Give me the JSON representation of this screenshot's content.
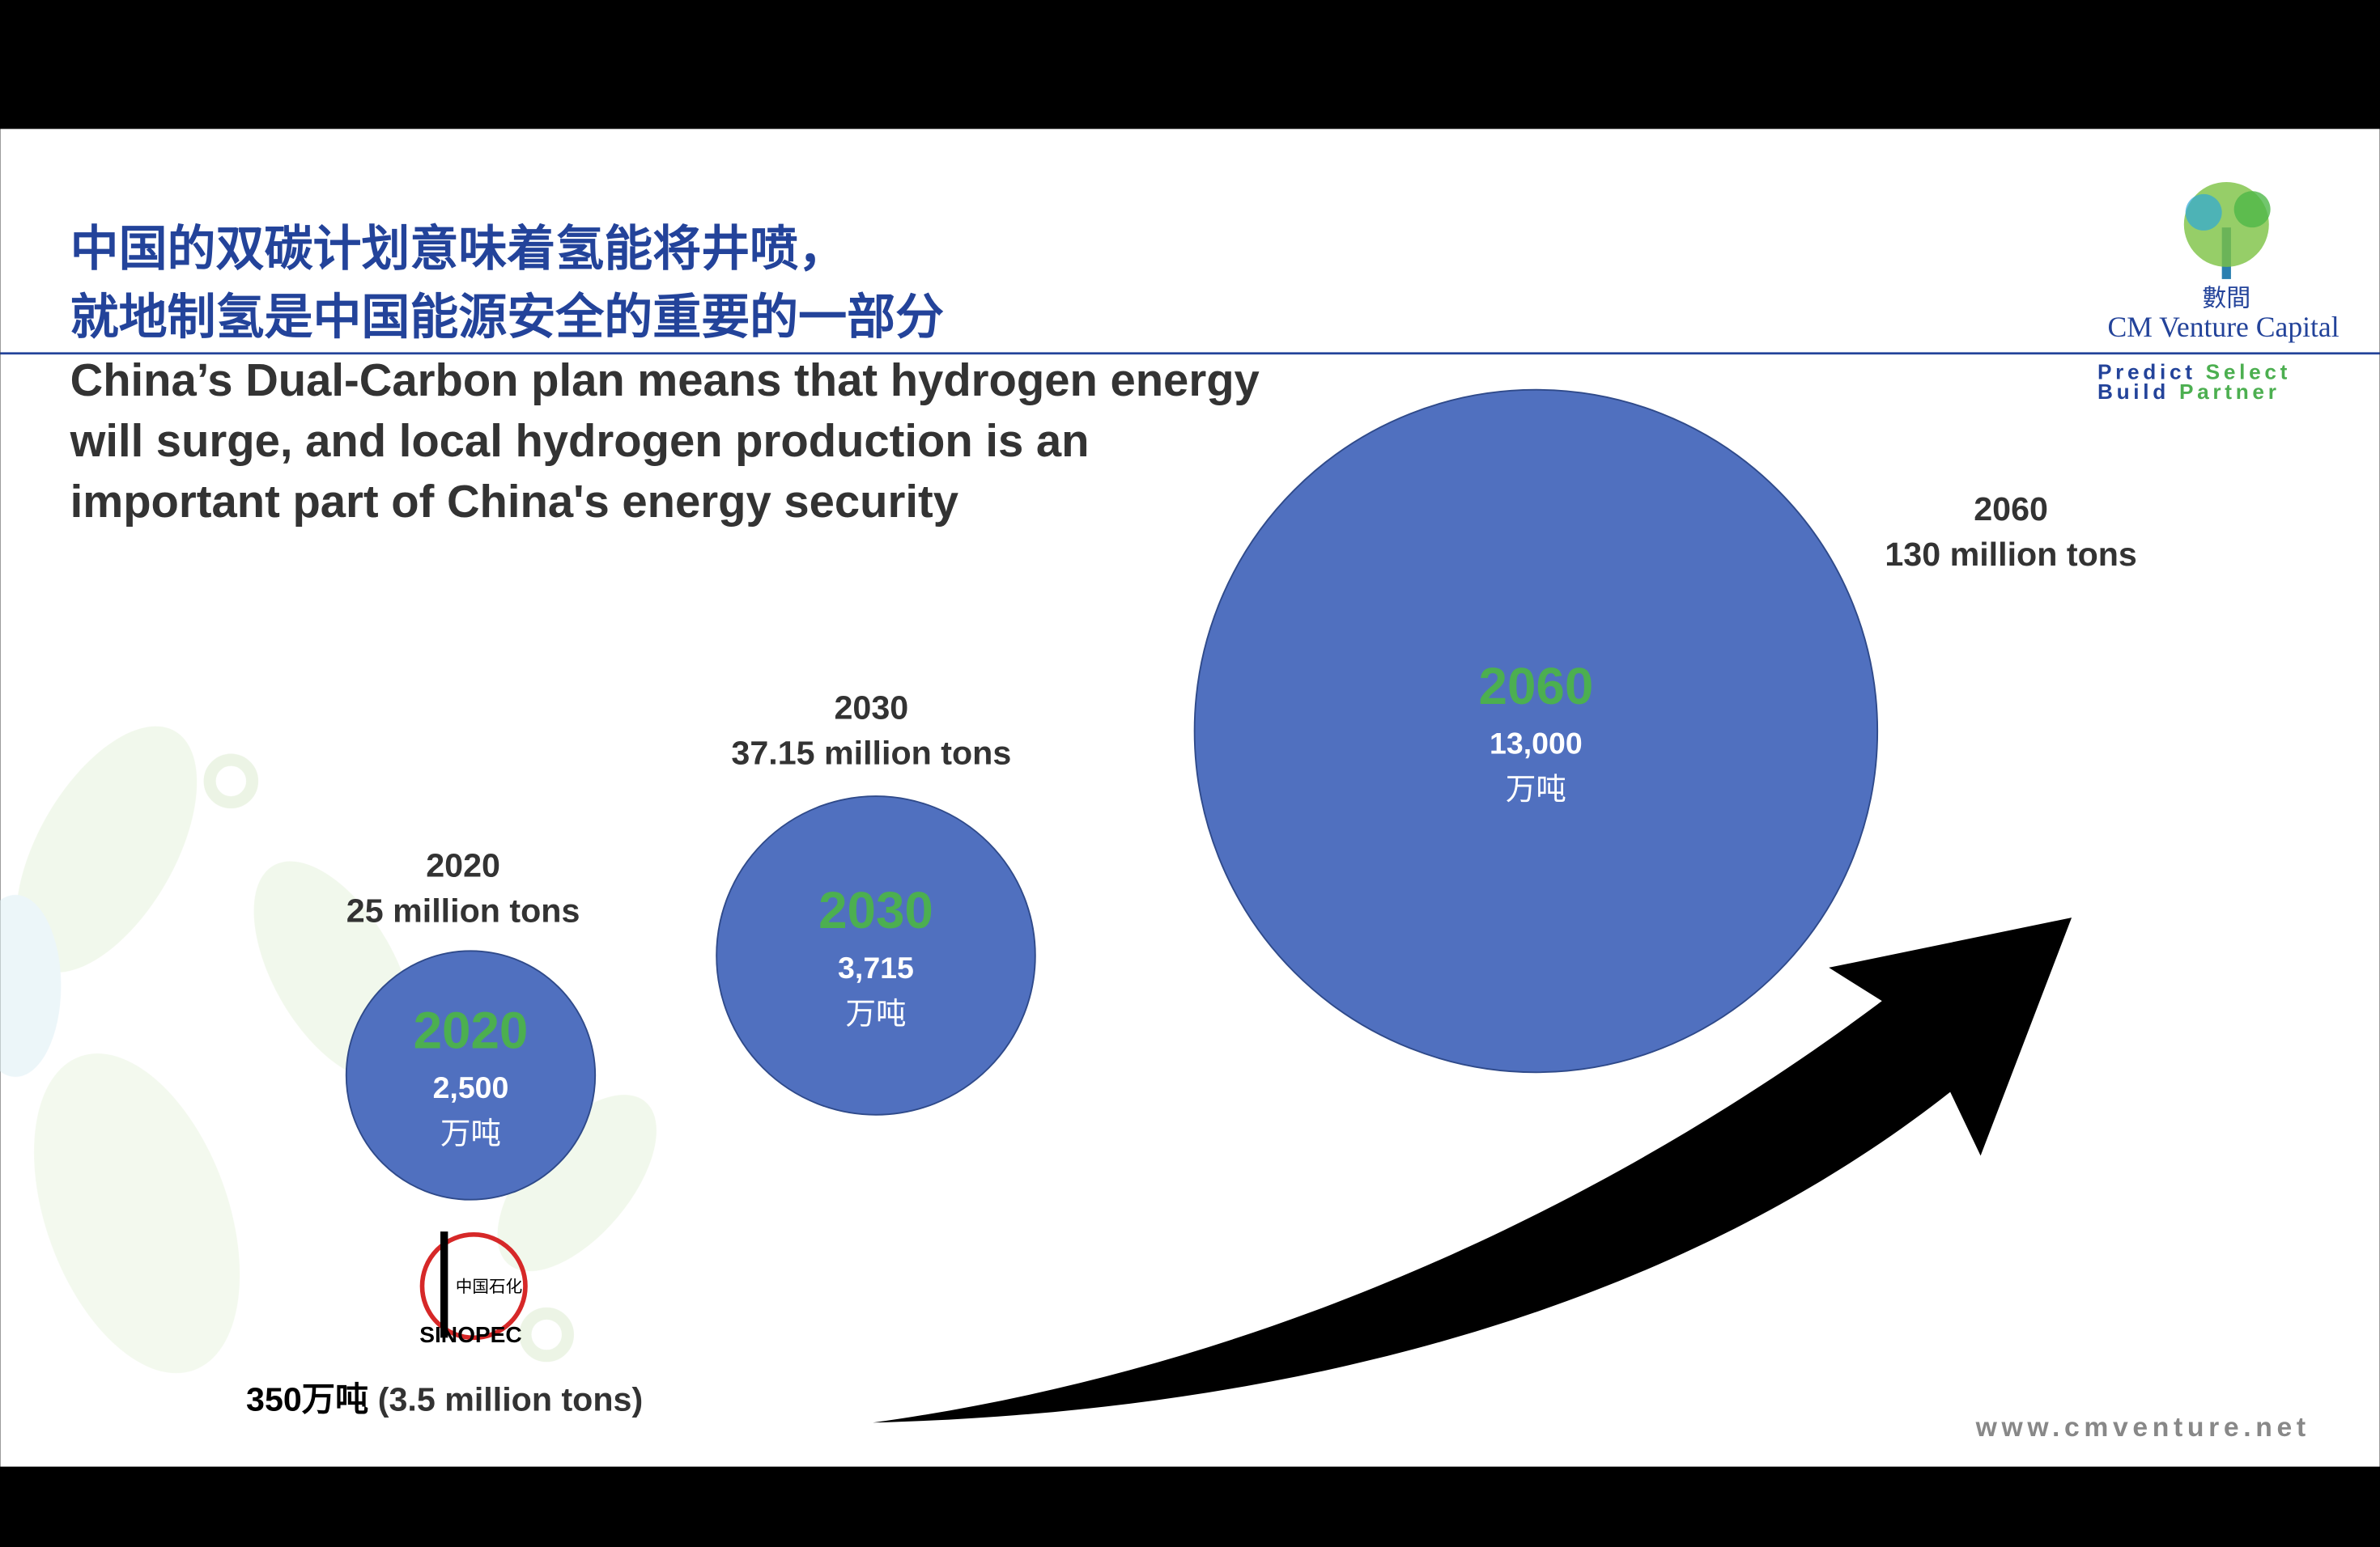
{
  "title_zh": [
    "中国的双碳计划意味着氢能将井喷，",
    "就地制氢是中国能源安全的重要的一部分"
  ],
  "title_en": [
    "China’s Dual-Carbon plan means that hydrogen energy",
    "will surge, and local hydrogen production is an",
    "important part of China's energy security"
  ],
  "logo": {
    "name_zh": "數間",
    "name": "CM Venture Capital",
    "tagline": [
      [
        "Predict",
        "Select"
      ],
      [
        "Build",
        "Partner"
      ]
    ]
  },
  "bubbles": [
    {
      "year": "2020",
      "caption": "25 million tons",
      "value": "2,500",
      "unit": "万吨"
    },
    {
      "year": "2030",
      "caption": "37.15 million tons",
      "value": "3,715",
      "unit": "万吨"
    },
    {
      "year": "2060",
      "caption": "130 million tons",
      "value": "13,000",
      "unit": "万吨"
    }
  ],
  "sinopec": {
    "name_zh": "中国石化",
    "name": "SINOPEC",
    "note_zh": "350万吨",
    "note_en": "(3.5 million tons)"
  },
  "website": "www.cmventure.net"
}
